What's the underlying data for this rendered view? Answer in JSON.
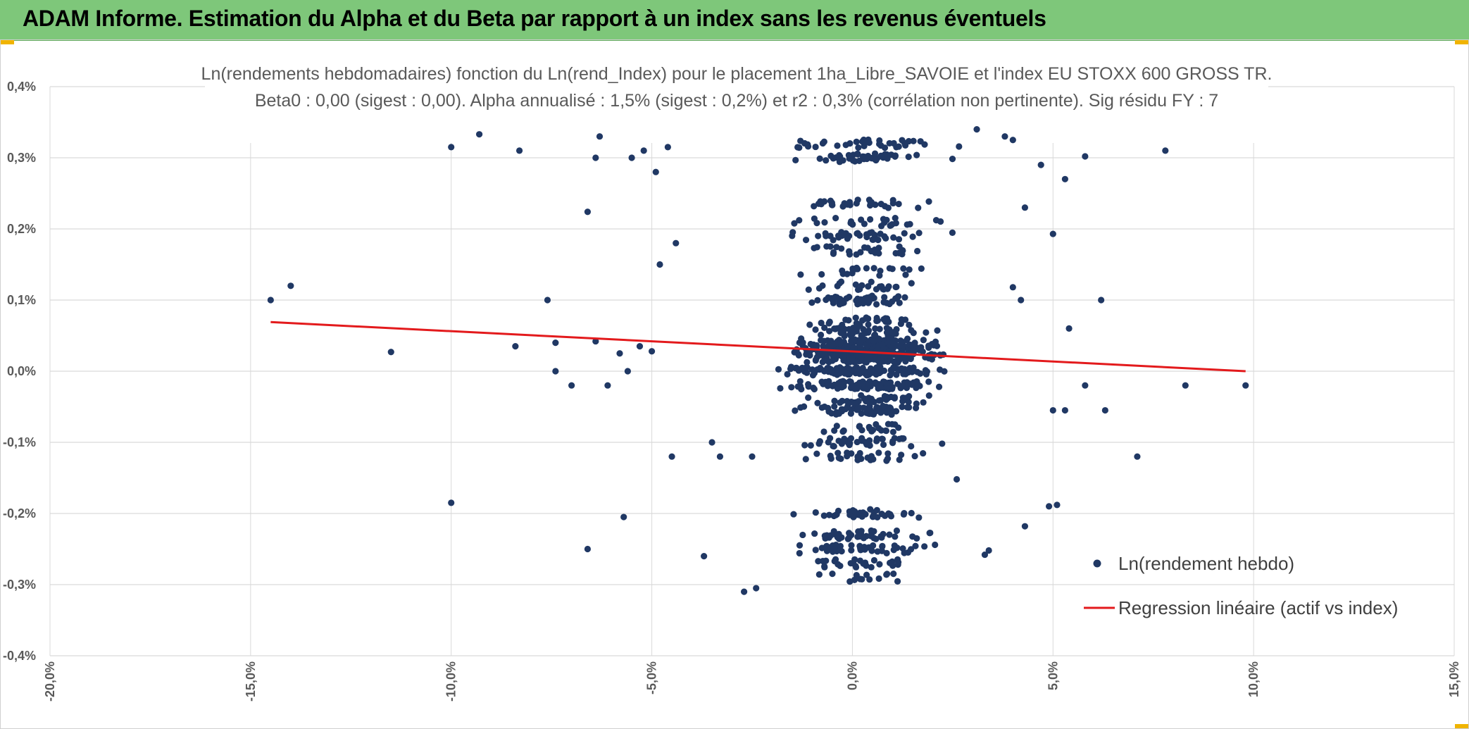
{
  "banner": {
    "title": "ADAM Informe. Estimation du Alpha et du Beta par rapport à un index sans les revenus éventuels"
  },
  "colors": {
    "banner_bg": "#7ec77a",
    "accent_corner": "#f0b400",
    "points": "#203864",
    "regression": "#e31a1c",
    "grid": "#d9d9d9",
    "text": "#595959"
  },
  "chart_data": {
    "type": "scatter",
    "title_line1": "Ln(rendements hebdomadaires) fonction du Ln(rend_Index) pour le placement 1ha_Libre_SAVOIE et l'index EU STOXX 600 GROSS TR.",
    "title_line2": "Beta0 : 0,00 (sigest : 0,00). Alpha annualisé : 1,5% (sigest : 0,2%) et r2 : 0,3% (corrélation non pertinente). Sig résidu FY : 7",
    "xlabel": "",
    "ylabel": "",
    "xlim": [
      -20,
      15
    ],
    "ylim": [
      -0.4,
      0.4
    ],
    "x_ticks": [
      "-20,0%",
      "-15,0%",
      "-10,0%",
      "-5,0%",
      "0,0%",
      "5,0%",
      "10,0%",
      "15,0%"
    ],
    "y_ticks": [
      "0,4%",
      "0,3%",
      "0,2%",
      "0,1%",
      "0,0%",
      "-0,1%",
      "-0,2%",
      "-0,3%",
      "-0,4%"
    ],
    "grid": true,
    "legend_position": "bottom-right",
    "series": [
      {
        "name": "Ln(rendement hebdo)",
        "kind": "scatter",
        "color": "#203864",
        "outliers": [
          {
            "x": -14.5,
            "y": 0.1
          },
          {
            "x": -14.0,
            "y": 0.12
          },
          {
            "x": -11.5,
            "y": 0.027
          },
          {
            "x": -10.0,
            "y": 0.315
          },
          {
            "x": -9.3,
            "y": 0.333
          },
          {
            "x": -8.4,
            "y": 0.035
          },
          {
            "x": -8.3,
            "y": 0.31
          },
          {
            "x": -7.6,
            "y": 0.1
          },
          {
            "x": -7.4,
            "y": 0.04
          },
          {
            "x": -7.4,
            "y": 0.0
          },
          {
            "x": -7.0,
            "y": -0.02
          },
          {
            "x": -6.6,
            "y": 0.224
          },
          {
            "x": -6.4,
            "y": 0.3
          },
          {
            "x": -6.3,
            "y": 0.33
          },
          {
            "x": -6.1,
            "y": -0.02
          },
          {
            "x": -5.8,
            "y": 0.025
          },
          {
            "x": -5.6,
            "y": 0.0
          },
          {
            "x": -5.5,
            "y": 0.3
          },
          {
            "x": -5.3,
            "y": 0.035
          },
          {
            "x": -5.2,
            "y": 0.31
          },
          {
            "x": -4.9,
            "y": 0.28
          },
          {
            "x": -4.8,
            "y": 0.15
          },
          {
            "x": -4.6,
            "y": 0.315
          },
          {
            "x": -4.4,
            "y": 0.18
          },
          {
            "x": -10.0,
            "y": -0.185
          },
          {
            "x": -5.7,
            "y": -0.205
          },
          {
            "x": -6.6,
            "y": -0.25
          },
          {
            "x": -4.5,
            "y": -0.12
          },
          {
            "x": -5.0,
            "y": 0.028
          },
          {
            "x": -6.4,
            "y": 0.042
          },
          {
            "x": 7.8,
            "y": 0.31
          },
          {
            "x": 5.8,
            "y": 0.302
          },
          {
            "x": 6.2,
            "y": 0.1
          },
          {
            "x": 5.4,
            "y": 0.06
          },
          {
            "x": 5.0,
            "y": 0.193
          },
          {
            "x": 5.3,
            "y": 0.27
          },
          {
            "x": 4.7,
            "y": 0.29
          },
          {
            "x": 5.0,
            "y": -0.055
          },
          {
            "x": 5.3,
            "y": -0.055
          },
          {
            "x": 5.8,
            "y": -0.02
          },
          {
            "x": 6.3,
            "y": -0.055
          },
          {
            "x": 7.1,
            "y": -0.12
          },
          {
            "x": 8.3,
            "y": -0.02
          },
          {
            "x": 9.8,
            "y": -0.02
          },
          {
            "x": 4.9,
            "y": -0.19
          },
          {
            "x": 5.1,
            "y": -0.188
          },
          {
            "x": 4.3,
            "y": -0.218
          },
          {
            "x": 4.0,
            "y": 0.325
          },
          {
            "x": 3.8,
            "y": 0.33
          },
          {
            "x": 4.3,
            "y": 0.23
          },
          {
            "x": 4.0,
            "y": 0.118
          },
          {
            "x": 4.2,
            "y": 0.1
          },
          {
            "x": -3.7,
            "y": -0.26
          },
          {
            "x": -2.7,
            "y": -0.31
          },
          {
            "x": -2.4,
            "y": -0.305
          },
          {
            "x": -2.5,
            "y": -0.12
          },
          {
            "x": -3.3,
            "y": -0.12
          },
          {
            "x": -3.5,
            "y": -0.1
          },
          {
            "x": 2.6,
            "y": -0.152
          },
          {
            "x": 3.4,
            "y": -0.252
          },
          {
            "x": 3.3,
            "y": -0.258
          },
          {
            "x": 3.1,
            "y": 0.34
          }
        ]
      },
      {
        "name": "Regression linéaire (actif vs index)",
        "kind": "line",
        "color": "#e31a1c",
        "points": [
          {
            "x": -14.5,
            "y": 0.069
          },
          {
            "x": 9.8,
            "y": 0.0
          }
        ]
      }
    ]
  }
}
